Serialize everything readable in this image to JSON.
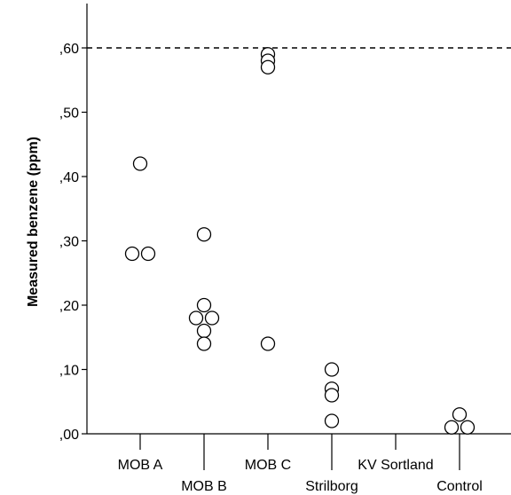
{
  "chart_data": {
    "type": "scatter",
    "title": "",
    "xlabel": "",
    "ylabel": "Measured benzene (ppm)",
    "ylim": [
      0.0,
      0.65
    ],
    "y_ticks": [
      {
        "value": 0.0,
        "label": ",00"
      },
      {
        "value": 0.1,
        "label": ",10"
      },
      {
        "value": 0.2,
        "label": ",20"
      },
      {
        "value": 0.3,
        "label": ",30"
      },
      {
        "value": 0.4,
        "label": ",40"
      },
      {
        "value": 0.5,
        "label": ",50"
      },
      {
        "value": 0.6,
        "label": ",60"
      }
    ],
    "categories": [
      "MOB A",
      "MOB B",
      "MOB C",
      "Strilborg",
      "KV Sortland",
      "Control"
    ],
    "points": [
      {
        "category": "MOB A",
        "y": 0.42
      },
      {
        "category": "MOB A",
        "y": 0.28,
        "jitter": -1
      },
      {
        "category": "MOB A",
        "y": 0.28,
        "jitter": 1
      },
      {
        "category": "MOB B",
        "y": 0.31
      },
      {
        "category": "MOB B",
        "y": 0.2
      },
      {
        "category": "MOB B",
        "y": 0.18,
        "jitter": -1
      },
      {
        "category": "MOB B",
        "y": 0.18,
        "jitter": 1
      },
      {
        "category": "MOB B",
        "y": 0.16
      },
      {
        "category": "MOB B",
        "y": 0.14
      },
      {
        "category": "MOB C",
        "y": 0.59
      },
      {
        "category": "MOB C",
        "y": 0.58
      },
      {
        "category": "MOB C",
        "y": 0.57
      },
      {
        "category": "MOB C",
        "y": 0.14
      },
      {
        "category": "Strilborg",
        "y": 0.1
      },
      {
        "category": "Strilborg",
        "y": 0.07
      },
      {
        "category": "Strilborg",
        "y": 0.06
      },
      {
        "category": "Strilborg",
        "y": 0.02
      },
      {
        "category": "Control",
        "y": 0.03
      },
      {
        "category": "Control",
        "y": 0.01,
        "jitter": -1
      },
      {
        "category": "Control",
        "y": 0.01,
        "jitter": 1
      }
    ],
    "reference_line": {
      "y": 0.6,
      "style": "dashed"
    },
    "grid": false,
    "legend": "none",
    "colors": {
      "marker_stroke": "#000000",
      "marker_fill": "#ffffff",
      "axis": "#000000",
      "background": "#ffffff"
    }
  }
}
